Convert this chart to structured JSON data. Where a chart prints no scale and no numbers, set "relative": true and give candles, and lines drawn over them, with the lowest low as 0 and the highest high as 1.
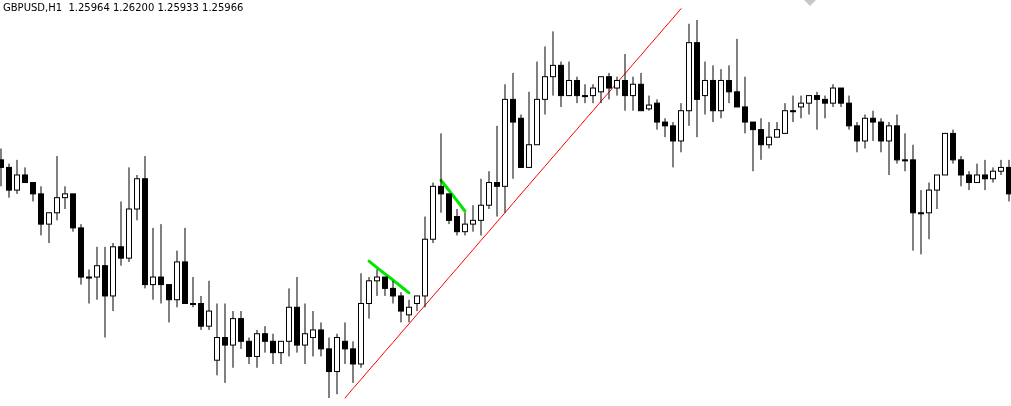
{
  "chart_data": {
    "type": "candlestick",
    "title": "GBPUSD,H1  1.25964 1.26200 1.25933 1.25966",
    "relative": true,
    "categories": [
      null,
      null,
      null,
      null,
      null,
      null,
      null,
      null,
      null,
      null,
      null,
      null,
      null,
      null,
      null,
      null,
      null,
      null,
      null,
      null,
      null,
      null,
      null,
      null,
      null,
      null,
      null,
      null,
      null,
      null,
      null,
      null,
      null,
      null,
      null,
      null,
      null,
      null,
      null,
      null,
      null,
      null,
      null,
      null,
      null,
      null,
      null,
      null,
      null,
      null,
      null,
      null,
      null,
      null,
      null,
      null,
      null,
      null,
      null,
      null,
      null,
      null,
      null,
      null,
      null,
      null,
      null,
      null,
      null,
      null,
      null,
      null,
      null,
      null,
      null,
      null,
      null,
      null,
      null,
      null,
      null,
      null,
      null,
      null,
      null,
      null,
      null,
      null,
      null,
      null,
      null,
      null,
      null,
      null,
      null,
      null,
      null,
      null,
      null,
      null,
      null,
      null,
      null,
      null,
      null,
      null,
      null,
      null,
      null,
      null,
      null,
      null,
      null,
      null,
      null,
      null,
      null,
      null,
      null,
      null,
      null,
      null,
      null,
      null,
      null,
      null,
      null
    ],
    "ohlc": [
      [
        0.63,
        0.66,
        0.56,
        0.61
      ],
      [
        0.61,
        0.62,
        0.53,
        0.55
      ],
      [
        0.55,
        0.63,
        0.54,
        0.59
      ],
      [
        0.59,
        0.61,
        0.57,
        0.57
      ],
      [
        0.57,
        0.57,
        0.52,
        0.54
      ],
      [
        0.54,
        0.56,
        0.43,
        0.46
      ],
      [
        0.46,
        0.49,
        0.41,
        0.49
      ],
      [
        0.49,
        0.64,
        0.47,
        0.53
      ],
      [
        0.53,
        0.56,
        0.5,
        0.54
      ],
      [
        0.54,
        0.54,
        0.44,
        0.45
      ],
      [
        0.45,
        0.46,
        0.3,
        0.32
      ],
      [
        0.32,
        0.34,
        0.25,
        0.32
      ],
      [
        0.32,
        0.4,
        0.26,
        0.35
      ],
      [
        0.35,
        0.4,
        0.16,
        0.27
      ],
      [
        0.27,
        0.41,
        0.23,
        0.4
      ],
      [
        0.4,
        0.52,
        0.35,
        0.37
      ],
      [
        0.37,
        0.61,
        0.36,
        0.5
      ],
      [
        0.5,
        0.59,
        0.47,
        0.58
      ],
      [
        0.58,
        0.64,
        0.29,
        0.3
      ],
      [
        0.3,
        0.45,
        0.26,
        0.32
      ],
      [
        0.32,
        0.46,
        0.25,
        0.3
      ],
      [
        0.3,
        0.3,
        0.2,
        0.26
      ],
      [
        0.26,
        0.39,
        0.24,
        0.36
      ],
      [
        0.36,
        0.45,
        0.25,
        0.25
      ],
      [
        0.25,
        0.32,
        0.24,
        0.25
      ],
      [
        0.25,
        0.27,
        0.18,
        0.19
      ],
      [
        0.19,
        0.31,
        0.18,
        0.23
      ],
      [
        0.1,
        0.25,
        0.06,
        0.16
      ],
      [
        0.16,
        0.25,
        0.04,
        0.14
      ],
      [
        0.14,
        0.23,
        0.08,
        0.21
      ],
      [
        0.21,
        0.23,
        0.13,
        0.15
      ],
      [
        0.15,
        0.16,
        0.09,
        0.11
      ],
      [
        0.11,
        0.18,
        0.08,
        0.17
      ],
      [
        0.17,
        0.19,
        0.12,
        0.15
      ],
      [
        0.15,
        0.17,
        0.09,
        0.12
      ],
      [
        0.12,
        0.15,
        0.09,
        0.15
      ],
      [
        0.15,
        0.29,
        0.11,
        0.24
      ],
      [
        0.24,
        0.32,
        0.12,
        0.14
      ],
      [
        0.14,
        0.25,
        0.09,
        0.17
      ],
      [
        0.16,
        0.23,
        0.11,
        0.18
      ],
      [
        0.18,
        0.2,
        0.11,
        0.13
      ],
      [
        0.13,
        0.16,
        0,
        0.07
      ],
      [
        0.07,
        0.17,
        0.01,
        0.16
      ],
      [
        0.15,
        0.2,
        0.09,
        0.13
      ],
      [
        0.13,
        0.15,
        0.04,
        0.09
      ],
      [
        0.09,
        0.33,
        0.08,
        0.25
      ],
      [
        0.25,
        0.32,
        0.21,
        0.31
      ],
      [
        0.31,
        0.34,
        0.27,
        0.32
      ],
      [
        0.32,
        0.32,
        0.27,
        0.29
      ],
      [
        0.29,
        0.31,
        0.25,
        0.27
      ],
      [
        0.27,
        0.28,
        0.2,
        0.23
      ],
      [
        0.22,
        0.26,
        0.2,
        0.24
      ],
      [
        0.25,
        0.27,
        0.23,
        0.27
      ],
      [
        0.27,
        0.48,
        0.24,
        0.42
      ],
      [
        0.42,
        0.57,
        0.41,
        0.56
      ],
      [
        0.56,
        0.7,
        0.49,
        0.54
      ],
      [
        0.54,
        0.54,
        0.46,
        0.47
      ],
      [
        0.48,
        0.5,
        0.43,
        0.44
      ],
      [
        0.44,
        0.49,
        0.43,
        0.46
      ],
      [
        0.46,
        0.51,
        0.44,
        0.47
      ],
      [
        0.47,
        0.58,
        0.43,
        0.51
      ],
      [
        0.51,
        0.6,
        0.5,
        0.57
      ],
      [
        0.57,
        0.72,
        0.48,
        0.56
      ],
      [
        0.56,
        0.83,
        0.49,
        0.79
      ],
      [
        0.79,
        0.86,
        0.58,
        0.73
      ],
      [
        0.74,
        0.75,
        0.61,
        0.61
      ],
      [
        0.61,
        0.81,
        0.61,
        0.67
      ],
      [
        0.67,
        0.89,
        0.67,
        0.79
      ],
      [
        0.79,
        0.93,
        0.75,
        0.85
      ],
      [
        0.85,
        0.97,
        0.8,
        0.88
      ],
      [
        0.88,
        0.89,
        0.77,
        0.8
      ],
      [
        0.8,
        0.89,
        0.8,
        0.84
      ],
      [
        0.84,
        0.85,
        0.78,
        0.8
      ],
      [
        0.8,
        0.83,
        0.78,
        0.8
      ],
      [
        0.8,
        0.83,
        0.78,
        0.82
      ],
      [
        0.81,
        0.85,
        0.78,
        0.85
      ],
      [
        0.85,
        0.86,
        0.79,
        0.82
      ],
      [
        0.82,
        0.85,
        0.8,
        0.84
      ],
      [
        0.84,
        0.91,
        0.76,
        0.8
      ],
      [
        0.8,
        0.85,
        0.76,
        0.83
      ],
      [
        0.83,
        0.86,
        0.76,
        0.76
      ],
      [
        0.765,
        0.8,
        0.76,
        0.775
      ],
      [
        0.78,
        0.79,
        0.71,
        0.73
      ],
      [
        0.73,
        0.74,
        0.69,
        0.72
      ],
      [
        0.72,
        0.73,
        0.61,
        0.68
      ],
      [
        0.68,
        0.78,
        0.65,
        0.76
      ],
      [
        0.76,
        0.99,
        0.72,
        0.94
      ],
      [
        0.94,
        1,
        0.69,
        0.79
      ],
      [
        0.8,
        0.89,
        0.75,
        0.84
      ],
      [
        0.84,
        0.88,
        0.73,
        0.76
      ],
      [
        0.76,
        0.87,
        0.74,
        0.84
      ],
      [
        0.84,
        0.88,
        0.78,
        0.81
      ],
      [
        0.81,
        0.95,
        0.77,
        0.77
      ],
      [
        0.77,
        0.85,
        0.7,
        0.73
      ],
      [
        0.73,
        0.73,
        0.6,
        0.71
      ],
      [
        0.71,
        0.74,
        0.63,
        0.67
      ],
      [
        0.67,
        0.73,
        0.66,
        0.69
      ],
      [
        0.69,
        0.73,
        0.69,
        0.71
      ],
      [
        0.7,
        0.78,
        0.7,
        0.76
      ],
      [
        0.76,
        0.8,
        0.73,
        0.76
      ],
      [
        0.77,
        0.8,
        0.74,
        0.78
      ],
      [
        0.78,
        0.8,
        0.75,
        0.8
      ],
      [
        0.8,
        0.81,
        0.71,
        0.79
      ],
      [
        0.79,
        0.8,
        0.74,
        0.78
      ],
      [
        0.78,
        0.83,
        0.77,
        0.82
      ],
      [
        0.82,
        0.82,
        0.77,
        0.78
      ],
      [
        0.78,
        0.8,
        0.71,
        0.72
      ],
      [
        0.72,
        0.73,
        0.65,
        0.68
      ],
      [
        0.68,
        0.75,
        0.66,
        0.74
      ],
      [
        0.74,
        0.76,
        0.68,
        0.73
      ],
      [
        0.73,
        0.74,
        0.65,
        0.68
      ],
      [
        0.68,
        0.73,
        0.59,
        0.72
      ],
      [
        0.72,
        0.75,
        0.62,
        0.63
      ],
      [
        0.63,
        0.7,
        0.6,
        0.63
      ],
      [
        0.63,
        0.67,
        0.39,
        0.49
      ],
      [
        0.49,
        0.55,
        0.38,
        0.49
      ],
      [
        0.49,
        0.57,
        0.42,
        0.55
      ],
      [
        0.55,
        0.59,
        0.5,
        0.59
      ],
      [
        0.59,
        0.7,
        0.59,
        0.7
      ],
      [
        0.7,
        0.71,
        0.62,
        0.63
      ],
      [
        0.63,
        0.64,
        0.56,
        0.59
      ],
      [
        0.59,
        0.6,
        0.55,
        0.57
      ],
      [
        0.57,
        0.62,
        0.57,
        0.59
      ],
      [
        0.59,
        0.63,
        0.55,
        0.58
      ],
      [
        0.58,
        0.61,
        0.57,
        0.6
      ],
      [
        0.6,
        0.63,
        0.59,
        0.61
      ],
      [
        0.61,
        0.63,
        0.52,
        0.54
      ]
    ],
    "series": [
      {
        "type": "line",
        "color": "#ff0000",
        "values": [
          null,
          null,
          null,
          null,
          null,
          null,
          null,
          null,
          null,
          null,
          null,
          null,
          null,
          null,
          null,
          null,
          null,
          null,
          null,
          null,
          null,
          null,
          null,
          null,
          null,
          null,
          null,
          null,
          null,
          null,
          null,
          null,
          null,
          null,
          null,
          null,
          null,
          null,
          null,
          null,
          null,
          null,
          null,
          0,
          0.025,
          0.049,
          0.074,
          0.098,
          0.123,
          0.147,
          0.172,
          0.196,
          0.221,
          0.245,
          0.27,
          0.294,
          0.319,
          0.343,
          0.368,
          0.392,
          0.417,
          0.441,
          0.466,
          0.49,
          0.515,
          0.54,
          0.564,
          0.589,
          0.613,
          0.638,
          0.662,
          0.687,
          0.711,
          0.736,
          0.76,
          0.785,
          0.809,
          0.834,
          0.858,
          0.883,
          0.907,
          0.932,
          0.956,
          0.981,
          1.005,
          1.03,
          null,
          null,
          null,
          null,
          null,
          null,
          null,
          null,
          null,
          null,
          null,
          null,
          null,
          null,
          null,
          null,
          null,
          null,
          null,
          null,
          null,
          null,
          null,
          null,
          null,
          null,
          null,
          null,
          null,
          null,
          null,
          null,
          null,
          null,
          null,
          null,
          null,
          null,
          null,
          null,
          null
        ]
      },
      {
        "type": "line",
        "color": "#00e600",
        "values": [
          null,
          null,
          null,
          null,
          null,
          null,
          null,
          null,
          null,
          null,
          null,
          null,
          null,
          null,
          null,
          null,
          null,
          null,
          null,
          null,
          null,
          null,
          null,
          null,
          null,
          null,
          null,
          null,
          null,
          null,
          null,
          null,
          null,
          null,
          null,
          null,
          null,
          null,
          null,
          null,
          null,
          null,
          null,
          null,
          null,
          null,
          0.362,
          0.345,
          0.328,
          0.312,
          0.295,
          0.278,
          null,
          null,
          null,
          null,
          null,
          null,
          null,
          null,
          null,
          null,
          null,
          null,
          null,
          null,
          null,
          null,
          null,
          null,
          null,
          null,
          null,
          null,
          null,
          null,
          null,
          null,
          null,
          null,
          null,
          null,
          null,
          null,
          null,
          null,
          null,
          null,
          null,
          null,
          null,
          null,
          null,
          null,
          null,
          null,
          null,
          null,
          null,
          null,
          null,
          null,
          null,
          null,
          null,
          null,
          null,
          null,
          null,
          null,
          null,
          null,
          null,
          null,
          null,
          null,
          null,
          null,
          null,
          null,
          null,
          null,
          null,
          null,
          null,
          null,
          null
        ]
      },
      {
        "type": "line",
        "color": "#00e600",
        "values": [
          null,
          null,
          null,
          null,
          null,
          null,
          null,
          null,
          null,
          null,
          null,
          null,
          null,
          null,
          null,
          null,
          null,
          null,
          null,
          null,
          null,
          null,
          null,
          null,
          null,
          null,
          null,
          null,
          null,
          null,
          null,
          null,
          null,
          null,
          null,
          null,
          null,
          null,
          null,
          null,
          null,
          null,
          null,
          null,
          null,
          null,
          null,
          null,
          null,
          null,
          null,
          null,
          null,
          null,
          null,
          0.576,
          0.549,
          0.522,
          0.494,
          null,
          null,
          null,
          null,
          null,
          null,
          null,
          null,
          null,
          null,
          null,
          null,
          null,
          null,
          null,
          null,
          null,
          null,
          null,
          null,
          null,
          null,
          null,
          null,
          null,
          null,
          null,
          null,
          null,
          null,
          null,
          null,
          null,
          null,
          null,
          null,
          null,
          null,
          null,
          null,
          null,
          null,
          null,
          null,
          null,
          null,
          null,
          null,
          null,
          null,
          null,
          null,
          null,
          null,
          null,
          null,
          null,
          null,
          null,
          null,
          null,
          null,
          null,
          null,
          null,
          null,
          null,
          null
        ]
      }
    ]
  }
}
